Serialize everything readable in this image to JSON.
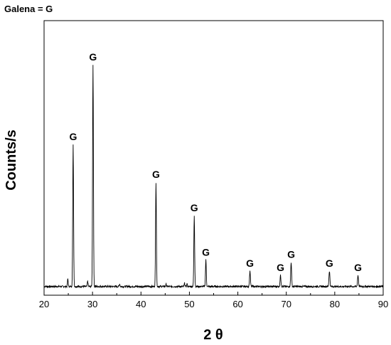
{
  "chart_data": {
    "type": "line",
    "title": "",
    "legend_note": "Galena = G",
    "xlabel": "2 θ",
    "ylabel": "Counts/s",
    "xlim": [
      20,
      90
    ],
    "xticks": [
      "20",
      "30",
      "40",
      "50",
      "60",
      "70",
      "80",
      "90"
    ],
    "y_ticks_shown": false,
    "grid": false,
    "line_color": "#000000",
    "baseline": 0.02,
    "peaks": [
      {
        "x": 26.0,
        "height": 0.64,
        "width": 0.12,
        "label": "G"
      },
      {
        "x": 30.1,
        "height": 1.0,
        "width": 0.12,
        "label": "G"
      },
      {
        "x": 43.1,
        "height": 0.47,
        "width": 0.12,
        "label": "G"
      },
      {
        "x": 51.0,
        "height": 0.32,
        "width": 0.12,
        "label": "G"
      },
      {
        "x": 53.4,
        "height": 0.12,
        "width": 0.12,
        "label": "G"
      },
      {
        "x": 62.5,
        "height": 0.07,
        "width": 0.13,
        "label": "G"
      },
      {
        "x": 68.8,
        "height": 0.05,
        "width": 0.13,
        "label": "G"
      },
      {
        "x": 71.0,
        "height": 0.11,
        "width": 0.13,
        "label": "G"
      },
      {
        "x": 78.9,
        "height": 0.07,
        "width": 0.14,
        "label": "G"
      },
      {
        "x": 84.8,
        "height": 0.05,
        "width": 0.14,
        "label": "G"
      }
    ],
    "minor_peaks": [
      {
        "x": 24.9,
        "height": 0.035,
        "width": 0.1
      },
      {
        "x": 29.0,
        "height": 0.025,
        "width": 0.1
      },
      {
        "x": 35.6,
        "height": 0.012,
        "width": 0.1
      },
      {
        "x": 45.2,
        "height": 0.01,
        "width": 0.1
      },
      {
        "x": 49.0,
        "height": 0.015,
        "width": 0.1
      },
      {
        "x": 49.5,
        "height": 0.012,
        "width": 0.1
      }
    ]
  }
}
